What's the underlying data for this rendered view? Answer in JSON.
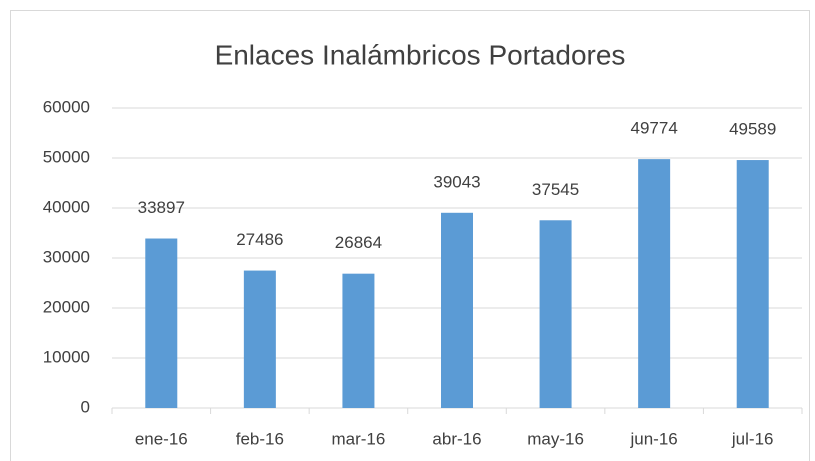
{
  "chart_data": {
    "type": "bar",
    "title": "Enlaces Inalámbricos Portadores",
    "categories": [
      "ene-16",
      "feb-16",
      "mar-16",
      "abr-16",
      "may-16",
      "jun-16",
      "jul-16"
    ],
    "values": [
      33897,
      27486,
      26864,
      39043,
      37545,
      49774,
      49589
    ],
    "color": "#5b9bd5",
    "ylim": [
      0,
      60000
    ],
    "yticks": [
      0,
      10000,
      20000,
      30000,
      40000,
      50000,
      60000
    ],
    "grid": true,
    "data_labels": true
  }
}
